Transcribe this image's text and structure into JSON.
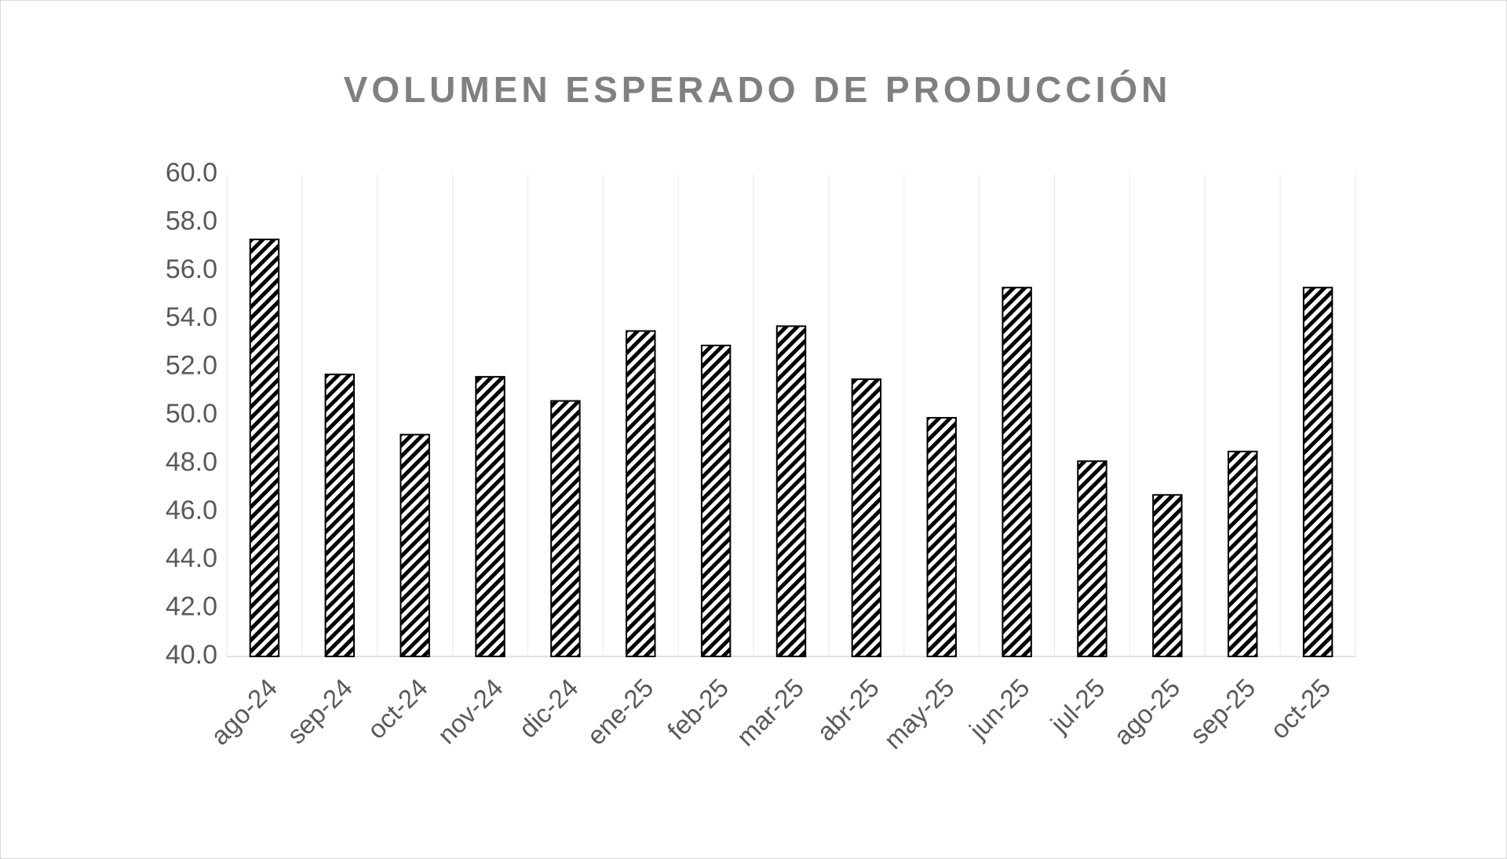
{
  "chart_data": {
    "type": "bar",
    "title": "VOLUMEN ESPERADO DE PRODUCCIÓN",
    "categories": [
      "ago-24",
      "sep-24",
      "oct-24",
      "nov-24",
      "dic-24",
      "ene-25",
      "feb-25",
      "mar-25",
      "abr-25",
      "may-25",
      "jun-25",
      "jul-25",
      "ago-25",
      "sep-25",
      "oct-25"
    ],
    "values": [
      57.3,
      51.7,
      49.2,
      51.6,
      50.6,
      53.5,
      52.9,
      53.7,
      51.5,
      49.9,
      55.3,
      48.1,
      46.7,
      48.5,
      55.3
    ],
    "color": "#000000",
    "pattern": "diagonal-hatch",
    "ylim": [
      40,
      60
    ],
    "yticks": [
      {
        "value": 40,
        "label": "40.0"
      },
      {
        "value": 42,
        "label": "42.0"
      },
      {
        "value": 44,
        "label": "44.0"
      },
      {
        "value": 46,
        "label": "46.0"
      },
      {
        "value": 48,
        "label": "48.0"
      },
      {
        "value": 50,
        "label": "50.0"
      },
      {
        "value": 52,
        "label": "52.0"
      },
      {
        "value": 54,
        "label": "54.0"
      },
      {
        "value": 56,
        "label": "56.0"
      },
      {
        "value": 58,
        "label": "58.0"
      },
      {
        "value": 60,
        "label": "60.0"
      }
    ],
    "grid": false,
    "xgrid": true
  }
}
